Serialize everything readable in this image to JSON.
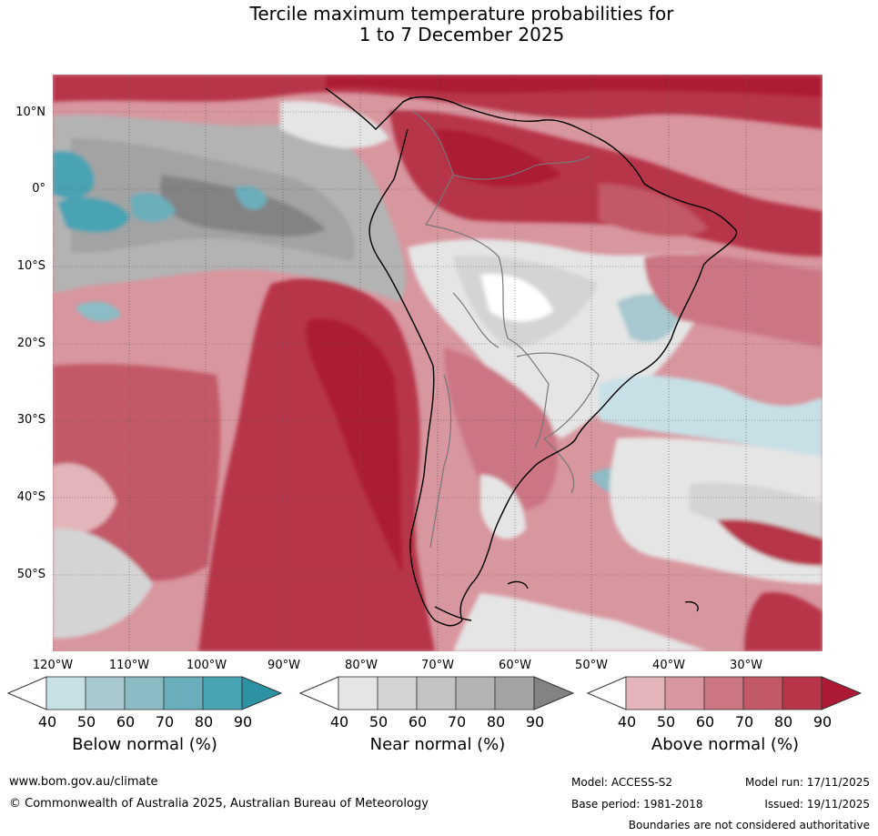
{
  "title": {
    "line1": "Tercile maximum temperature probabilities for",
    "line2": "1 to 7 December 2025"
  },
  "map": {
    "region": "South America",
    "lat_labels": [
      "10°N",
      "0°",
      "10°S",
      "20°S",
      "30°S",
      "40°S",
      "50°S"
    ],
    "lon_labels": [
      "120°W",
      "110°W",
      "100°W",
      "90°W",
      "80°W",
      "70°W",
      "60°W",
      "50°W",
      "40°W",
      "30°W"
    ]
  },
  "legend": {
    "tick_labels": [
      "40",
      "50",
      "60",
      "70",
      "80",
      "90"
    ],
    "below": {
      "title": "Below normal (%)",
      "colors": [
        "#ffffff",
        "#c7e0e6",
        "#a6c8ce",
        "#8bbcc4",
        "#6aaebb",
        "#48a3b3",
        "#2e92a5"
      ]
    },
    "near": {
      "title": "Near normal (%)",
      "colors": [
        "#ffffff",
        "#e5e5e5",
        "#d4d4d4",
        "#c4c4c4",
        "#b3b3b3",
        "#a3a3a3",
        "#838383"
      ]
    },
    "above": {
      "title": "Above normal (%)",
      "colors": [
        "#ffffff",
        "#e3b5bb",
        "#d8969f",
        "#cc7684",
        "#c35868",
        "#b73449",
        "#ad1a36"
      ]
    }
  },
  "footer": {
    "website": "www.bom.gov.au/climate",
    "copyright": "© Commonwealth of Australia 2025, Australian Bureau of Meteorology",
    "model": "Model: ACCESS-S2",
    "base_period": "Base period: 1981-2018",
    "model_run": "Model run: 17/11/2025",
    "issued": "Issued: 19/11/2025",
    "disclaimer": "Boundaries are not considered authoritative"
  }
}
